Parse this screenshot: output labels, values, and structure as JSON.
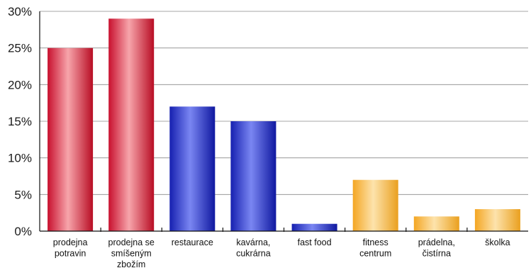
{
  "chart_data": {
    "type": "bar",
    "title": "",
    "xlabel": "",
    "ylabel": "",
    "ylim": [
      0,
      30
    ],
    "yticks": [
      0,
      5,
      10,
      15,
      20,
      25,
      30
    ],
    "ytick_suffix": "%",
    "grid": true,
    "categories": [
      [
        "prodejna",
        "potravin"
      ],
      [
        "prodejna se",
        "smíšeným",
        "zbožím"
      ],
      [
        "restaurace"
      ],
      [
        "kavárna,",
        "cukrárna"
      ],
      [
        "fast food"
      ],
      [
        "fitness",
        "centrum"
      ],
      [
        "prádelna,",
        "čistírna"
      ],
      [
        "školka"
      ]
    ],
    "values": [
      25,
      29,
      17,
      15,
      1,
      7,
      2,
      3
    ],
    "bar_colors": [
      "red",
      "red",
      "blue",
      "blue",
      "blue",
      "orange",
      "orange",
      "orange"
    ],
    "palettes": {
      "red": {
        "edge": "#c8102e",
        "mid": "#f7a5ab",
        "dark": "#b80d24"
      },
      "blue": {
        "edge": "#1620b0",
        "mid": "#7a86f2",
        "dark": "#0f18a0"
      },
      "orange": {
        "edge": "#f4a623",
        "mid": "#fde3ac",
        "dark": "#eaa01f"
      }
    }
  }
}
